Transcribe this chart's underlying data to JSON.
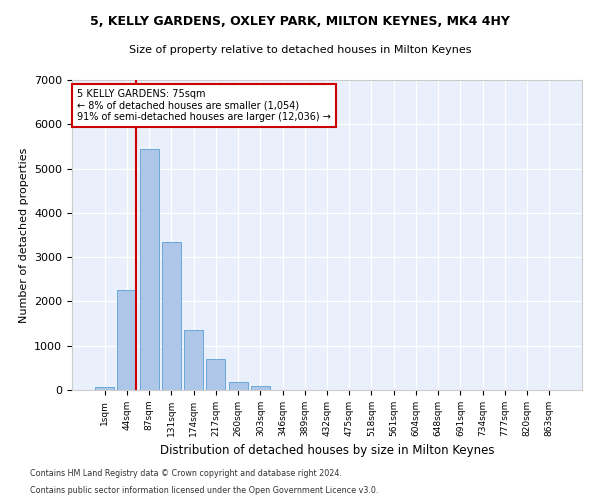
{
  "title1": "5, KELLY GARDENS, OXLEY PARK, MILTON KEYNES, MK4 4HY",
  "title2": "Size of property relative to detached houses in Milton Keynes",
  "xlabel": "Distribution of detached houses by size in Milton Keynes",
  "ylabel": "Number of detached properties",
  "footer1": "Contains HM Land Registry data © Crown copyright and database right 2024.",
  "footer2": "Contains public sector information licensed under the Open Government Licence v3.0.",
  "bar_labels": [
    "1sqm",
    "44sqm",
    "87sqm",
    "131sqm",
    "174sqm",
    "217sqm",
    "260sqm",
    "303sqm",
    "346sqm",
    "389sqm",
    "432sqm",
    "475sqm",
    "518sqm",
    "561sqm",
    "604sqm",
    "648sqm",
    "691sqm",
    "734sqm",
    "777sqm",
    "820sqm",
    "863sqm"
  ],
  "bar_values": [
    60,
    2250,
    5450,
    3350,
    1350,
    700,
    175,
    100,
    0,
    0,
    0,
    0,
    0,
    0,
    0,
    0,
    0,
    0,
    0,
    0,
    0
  ],
  "bar_color": "#aec6e8",
  "bar_edge_color": "#5a9fd4",
  "bg_color": "#eaf0fb",
  "grid_color": "#ffffff",
  "vline_color": "#cc0000",
  "annotation_text": "5 KELLY GARDENS: 75sqm\n← 8% of detached houses are smaller (1,054)\n91% of semi-detached houses are larger (12,036) →",
  "annotation_box_color": "#ffffff",
  "annotation_box_edge": "#cc0000",
  "ylim": [
    0,
    7000
  ],
  "yticks": [
    0,
    1000,
    2000,
    3000,
    4000,
    5000,
    6000,
    7000
  ],
  "vline_pos": 1.43
}
